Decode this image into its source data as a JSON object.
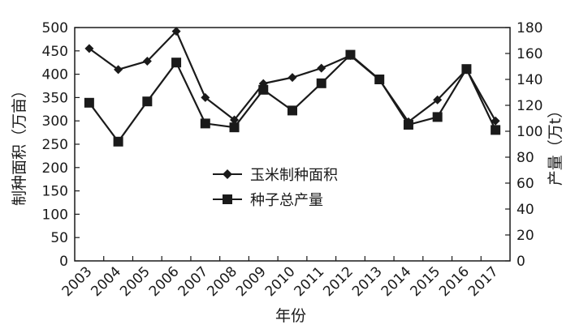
{
  "chart_data": {
    "type": "line",
    "x": [
      "2003",
      "2004",
      "2005",
      "2006",
      "2007",
      "2008",
      "2009",
      "2010",
      "2011",
      "2012",
      "2013",
      "2014",
      "2015",
      "2016",
      "2017"
    ],
    "xlabel": "年份",
    "ylabel_left": "制种面积（万亩）",
    "ylabel_right": "产量（万t）",
    "ylim_left": [
      0,
      500
    ],
    "yticks_left": [
      0,
      50,
      100,
      150,
      200,
      250,
      300,
      350,
      400,
      450,
      500
    ],
    "ylim_right": [
      0,
      180
    ],
    "yticks_right": [
      0,
      20,
      40,
      60,
      80,
      100,
      120,
      140,
      160,
      180
    ],
    "grid": false,
    "legend_position": "center",
    "series": [
      {
        "name": "玉米制种面积",
        "axis": "left",
        "marker": "diamond",
        "color": "#1a1a1a",
        "values": [
          455,
          410,
          428,
          492,
          350,
          302,
          380,
          393,
          413,
          440,
          388,
          298,
          345,
          410,
          300
        ]
      },
      {
        "name": "种子总产量",
        "axis": "right",
        "marker": "square",
        "color": "#1a1a1a",
        "values": [
          122,
          92,
          123,
          153,
          106,
          103,
          132,
          116,
          137,
          159,
          140,
          105,
          111,
          148,
          101
        ]
      }
    ]
  }
}
